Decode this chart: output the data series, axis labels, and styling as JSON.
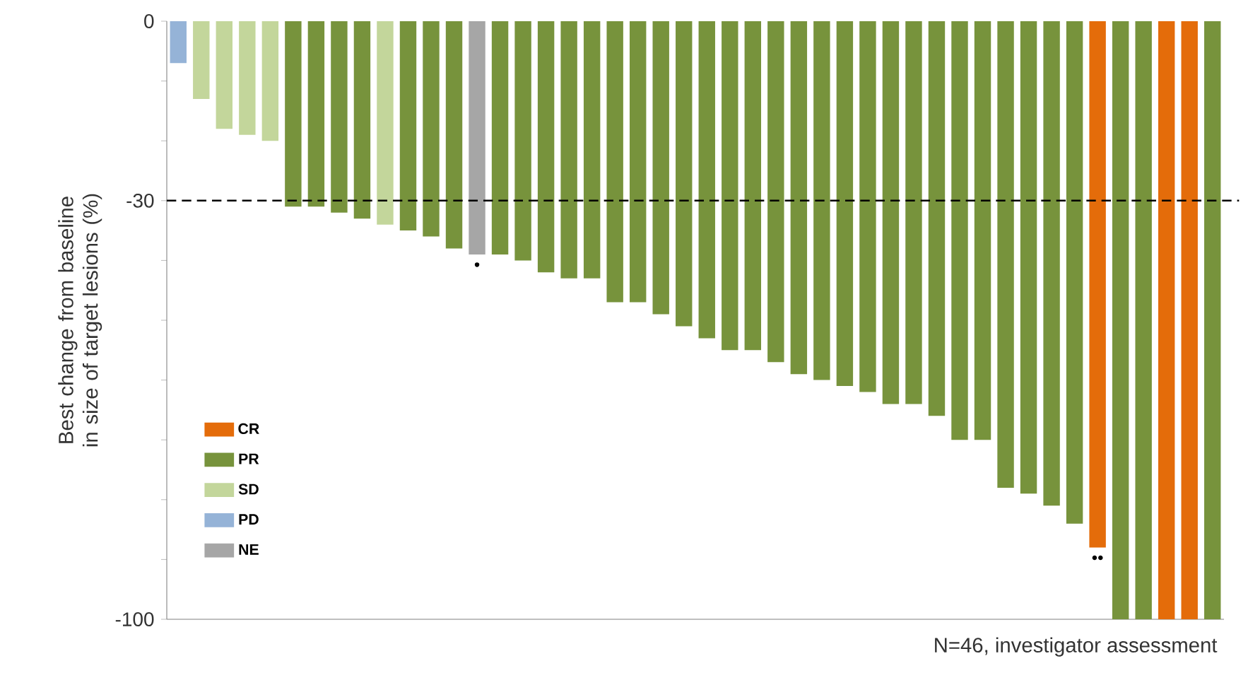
{
  "chart_data": {
    "type": "bar",
    "ylabel": "Best change from baseline in size of target lesions (%)",
    "categories": [
      null,
      null,
      null,
      null,
      null,
      null,
      null,
      null,
      null,
      null,
      null,
      null,
      null,
      null,
      null,
      null,
      null,
      null,
      null,
      null,
      null,
      null,
      null,
      null,
      null,
      null,
      null,
      null,
      null,
      null,
      null,
      null,
      null,
      null,
      null,
      null,
      null,
      null,
      null,
      null,
      null,
      null,
      null,
      null,
      null,
      null
    ],
    "series": [
      {
        "name": "CR",
        "color": "#e46c0a",
        "values": [
          null,
          null,
          null,
          null,
          null,
          null,
          null,
          null,
          null,
          null,
          null,
          null,
          null,
          null,
          null,
          null,
          null,
          null,
          null,
          null,
          null,
          null,
          null,
          null,
          null,
          null,
          null,
          null,
          null,
          null,
          null,
          null,
          null,
          null,
          null,
          null,
          null,
          null,
          null,
          null,
          -88,
          null,
          null,
          -100,
          -100,
          null
        ],
        "value_labels": [
          null,
          null,
          null,
          null,
          null,
          null,
          null,
          null,
          null,
          null,
          null,
          null,
          null,
          null,
          null,
          null,
          null,
          null,
          null,
          null,
          null,
          null,
          null,
          null,
          null,
          null,
          null,
          null,
          null,
          null,
          null,
          null,
          null,
          null,
          null,
          null,
          null,
          null,
          null,
          null,
          "••",
          null,
          null,
          null,
          null,
          null
        ]
      },
      {
        "name": "PR",
        "color": "#77933c",
        "values": [
          null,
          null,
          null,
          null,
          null,
          -31,
          -31,
          -32,
          -33,
          null,
          -35,
          -36,
          -38,
          null,
          -39,
          -40,
          -42,
          -43,
          -43,
          -47,
          -47,
          -49,
          -51,
          -53,
          -55,
          -55,
          -57,
          -59,
          -60,
          -61,
          -62,
          -64,
          -64,
          -66,
          -70,
          -70,
          -78,
          -79,
          -81,
          -84,
          null,
          -100,
          -100,
          null,
          null,
          -100
        ]
      },
      {
        "name": "SD",
        "color": "#c3d69b",
        "values": [
          null,
          -13,
          -18,
          -19,
          -20,
          null,
          null,
          null,
          null,
          -34,
          null,
          null,
          null,
          null,
          null,
          null,
          null,
          null,
          null,
          null,
          null,
          null,
          null,
          null,
          null,
          null,
          null,
          null,
          null,
          null,
          null,
          null,
          null,
          null,
          null,
          null,
          null,
          null,
          null,
          null,
          null,
          null,
          null,
          null,
          null,
          null
        ]
      },
      {
        "name": "PD",
        "color": "#95b3d7",
        "values": [
          -7,
          null,
          null,
          null,
          null,
          null,
          null,
          null,
          null,
          null,
          null,
          null,
          null,
          null,
          null,
          null,
          null,
          null,
          null,
          null,
          null,
          null,
          null,
          null,
          null,
          null,
          null,
          null,
          null,
          null,
          null,
          null,
          null,
          null,
          null,
          null,
          null,
          null,
          null,
          null,
          null,
          null,
          null,
          null,
          null,
          null
        ]
      },
      {
        "name": "NE",
        "color": "#a6a6a6",
        "values": [
          null,
          null,
          null,
          null,
          null,
          null,
          null,
          null,
          null,
          null,
          null,
          null,
          null,
          -39,
          null,
          null,
          null,
          null,
          null,
          null,
          null,
          null,
          null,
          null,
          null,
          null,
          null,
          null,
          null,
          null,
          null,
          null,
          null,
          null,
          null,
          null,
          null,
          null,
          null,
          null,
          null,
          null,
          null,
          null,
          null,
          null
        ],
        "value_labels": [
          null,
          null,
          null,
          null,
          null,
          null,
          null,
          null,
          null,
          null,
          null,
          null,
          null,
          "•",
          null,
          null,
          null,
          null,
          null,
          null,
          null,
          null,
          null,
          null,
          null,
          null,
          null,
          null,
          null,
          null,
          null,
          null,
          null,
          null,
          null,
          null,
          null,
          null,
          null,
          null,
          null,
          null,
          null,
          null,
          null,
          null
        ]
      }
    ],
    "ylim": [
      -100,
      0
    ],
    "yticks": [
      0,
      {
        "value": -10,
        "label": null
      },
      {
        "value": -20,
        "label": null
      },
      -30,
      {
        "value": -40,
        "label": null
      },
      {
        "value": -50,
        "label": null
      },
      {
        "value": -60,
        "label": null
      },
      {
        "value": -70,
        "label": null
      },
      {
        "value": -80,
        "label": null
      },
      {
        "value": -90,
        "label": null
      },
      -100
    ],
    "ref_lines": [
      {
        "axis": "y",
        "value": -30,
        "color": "#000000",
        "line_style": "dashed"
      }
    ],
    "legend": "bottom left",
    "tick_labels": "y",
    "annotations": [
      "N=46, investigator assessment"
    ]
  }
}
